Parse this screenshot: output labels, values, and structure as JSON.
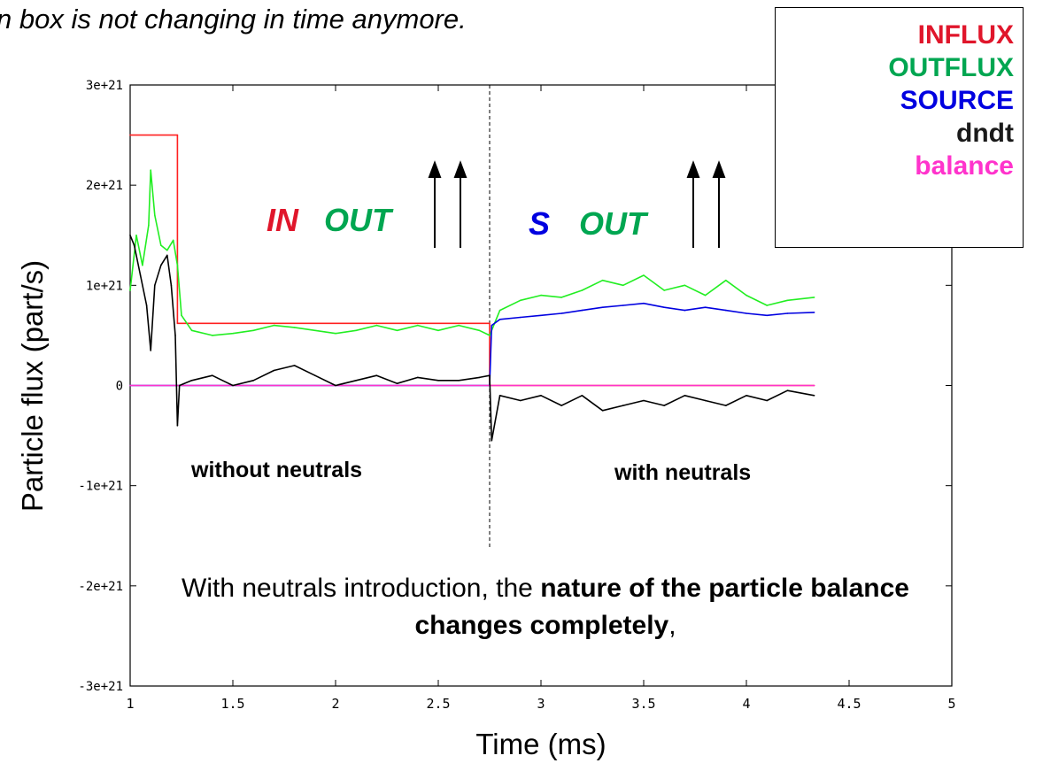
{
  "caption_fragment": "n box is not changing in time anymore.",
  "legend": [
    {
      "label": "INFLUX",
      "color": "#e0162b"
    },
    {
      "label": "OUTFLUX",
      "color": "#00a651"
    },
    {
      "label": "SOURCE",
      "color": "#0000e0"
    },
    {
      "label": "dndt",
      "color": "#1a1a1a"
    },
    {
      "label": "balance",
      "color": "#ff33cc"
    }
  ],
  "annotations": {
    "in": "IN",
    "out_left": "OUT",
    "s": "S",
    "out_right": "OUT",
    "without_neutrals": "without neutrals",
    "with_neutrals": "with neutrals"
  },
  "note": {
    "part1": "With neutrals introduction, the ",
    "bold1": "nature of the particle balance changes completely",
    "part2": ","
  },
  "chart_data": {
    "type": "line",
    "xlabel": "Time (ms)",
    "ylabel": "Particle flux (part/s)",
    "xlim": [
      1,
      5
    ],
    "ylim": [
      -3e+21,
      3e+21
    ],
    "x_ticks": [
      1,
      1.5,
      2,
      2.5,
      3,
      3.5,
      4,
      4.5,
      5
    ],
    "x_tick_labels": [
      "1",
      "1.5",
      "2",
      "2.5",
      "3",
      "3.5",
      "4",
      "4.5",
      "5"
    ],
    "y_ticks": [
      -3e+21,
      -2e+21,
      -1e+21,
      0,
      1e+21,
      2e+21,
      3e+21
    ],
    "y_tick_labels": [
      "-3e+21",
      "-2e+21",
      "-1e+21",
      "0",
      "1e+21",
      "2e+21",
      "3e+21"
    ],
    "divider_x": 2.75,
    "series": [
      {
        "name": "INFLUX",
        "color": "#ff2020",
        "x": [
          1.0,
          1.23,
          1.23,
          2.75,
          2.75,
          4.33
        ],
        "y": [
          2.5e+21,
          2.5e+21,
          6.2e+20,
          6.2e+20,
          0,
          0
        ]
      },
      {
        "name": "OUTFLUX",
        "color": "#22ee22",
        "x": [
          1.0,
          1.03,
          1.06,
          1.09,
          1.1,
          1.12,
          1.15,
          1.18,
          1.21,
          1.23,
          1.25,
          1.3,
          1.4,
          1.5,
          1.6,
          1.7,
          1.8,
          1.9,
          2.0,
          2.1,
          2.2,
          2.3,
          2.4,
          2.5,
          2.6,
          2.7,
          2.75,
          2.8,
          2.9,
          3.0,
          3.1,
          3.2,
          3.3,
          3.4,
          3.5,
          3.6,
          3.7,
          3.8,
          3.9,
          4.0,
          4.1,
          4.2,
          4.33
        ],
        "y": [
          9.5e+20,
          1.5e+21,
          1.2e+21,
          1.6e+21,
          2.15e+21,
          1.7e+21,
          1.4e+21,
          1.35e+21,
          1.45e+21,
          1.2e+21,
          7e+20,
          5.5e+20,
          5e+20,
          5.2e+20,
          5.5e+20,
          6e+20,
          5.8e+20,
          5.5e+20,
          5.2e+20,
          5.5e+20,
          6e+20,
          5.5e+20,
          6e+20,
          5.5e+20,
          6e+20,
          5.5e+20,
          5e+20,
          7.5e+20,
          8.5e+20,
          9e+20,
          8.8e+20,
          9.5e+20,
          1.05e+21,
          1e+21,
          1.1e+21,
          9.5e+20,
          1e+21,
          9e+20,
          1.05e+21,
          9e+20,
          8e+20,
          8.5e+20,
          8.8e+20
        ]
      },
      {
        "name": "SOURCE",
        "color": "#0000e0",
        "x": [
          1.0,
          2.75,
          2.76,
          2.8,
          2.9,
          3.0,
          3.1,
          3.2,
          3.3,
          3.4,
          3.5,
          3.6,
          3.7,
          3.8,
          3.9,
          4.0,
          4.1,
          4.2,
          4.33
        ],
        "y": [
          0,
          0,
          6e+20,
          6.6e+20,
          6.8e+20,
          7e+20,
          7.2e+20,
          7.5e+20,
          7.8e+20,
          8e+20,
          8.2e+20,
          7.8e+20,
          7.5e+20,
          7.8e+20,
          7.5e+20,
          7.2e+20,
          7e+20,
          7.2e+20,
          7.3e+20
        ]
      },
      {
        "name": "dndt",
        "color": "#000000",
        "x": [
          1.0,
          1.02,
          1.05,
          1.08,
          1.1,
          1.12,
          1.15,
          1.18,
          1.2,
          1.22,
          1.23,
          1.24,
          1.3,
          1.4,
          1.5,
          1.6,
          1.7,
          1.8,
          1.9,
          2.0,
          2.1,
          2.2,
          2.3,
          2.4,
          2.5,
          2.6,
          2.7,
          2.75,
          2.76,
          2.8,
          2.9,
          3.0,
          3.1,
          3.2,
          3.3,
          3.4,
          3.5,
          3.6,
          3.7,
          3.8,
          3.9,
          4.0,
          4.1,
          4.2,
          4.33
        ],
        "y": [
          1.5e+21,
          1.4e+21,
          1.1e+21,
          8e+20,
          3.5e+20,
          1e+21,
          1.2e+21,
          1.3e+21,
          1e+21,
          5e+20,
          -4e+20,
          0.0,
          5e+19,
          1e+20,
          0.0,
          5e+19,
          1.5e+20,
          2e+20,
          1e+20,
          0.0,
          5e+19,
          1e+20,
          2e+19,
          8e+19,
          5e+19,
          5e+19,
          8e+19,
          1e+20,
          -5.5e+20,
          -1e+20,
          -1.5e+20,
          -1e+20,
          -2e+20,
          -1e+20,
          -2.5e+20,
          -2e+20,
          -1.5e+20,
          -2e+20,
          -1e+20,
          -1.5e+20,
          -2e+20,
          -1e+20,
          -1.5e+20,
          -5e+19,
          -1e+20
        ]
      },
      {
        "name": "balance",
        "color": "#ff33cc",
        "x": [
          1.0,
          4.33
        ],
        "y": [
          0,
          0
        ]
      }
    ]
  }
}
